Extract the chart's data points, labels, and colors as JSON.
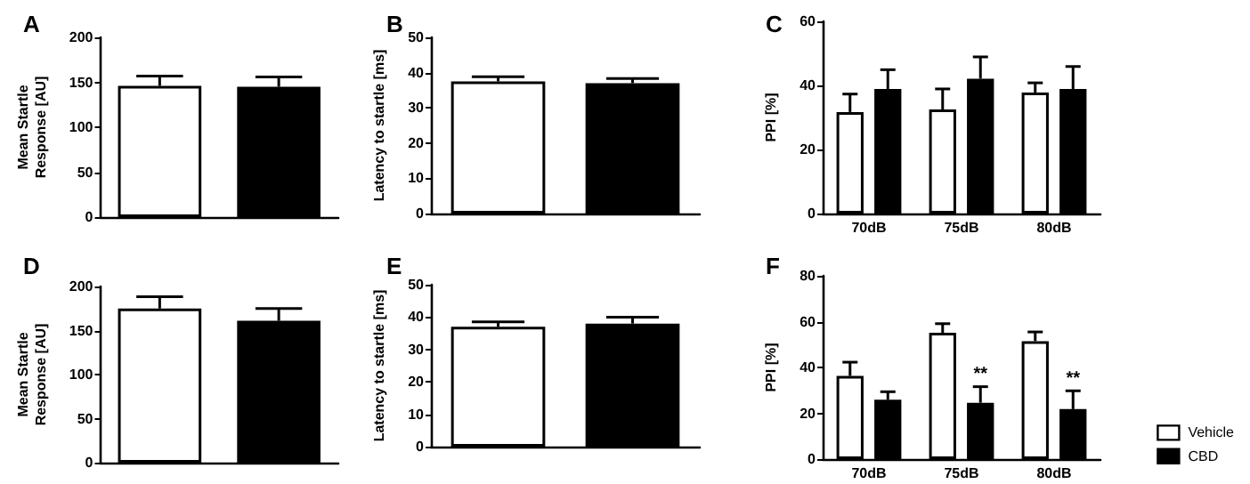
{
  "chart_data": [
    {
      "type": "bar",
      "title": "A",
      "ylabel": "Mean Startle\nResponse [AU]",
      "categories": [
        null,
        null
      ],
      "values": [
        146,
        145
      ],
      "errors": [
        11,
        11
      ],
      "colors": [
        "#ffffff",
        "#000000"
      ],
      "ylim": [
        0,
        200
      ],
      "yticks": [
        0,
        50,
        100,
        150,
        200
      ],
      "grid": false,
      "legend": false
    },
    {
      "type": "bar",
      "title": "B",
      "ylabel": "Latency to startle [ms]",
      "categories": [
        null,
        null
      ],
      "values": [
        37.5,
        37
      ],
      "errors": [
        1.3,
        1.3
      ],
      "colors": [
        "#ffffff",
        "#000000"
      ],
      "ylim": [
        0,
        50
      ],
      "yticks": [
        0,
        10,
        20,
        30,
        40,
        50
      ],
      "grid": false,
      "legend": false
    },
    {
      "type": "bar",
      "title": "C",
      "ylabel": "PPI [%]",
      "categories": [
        "70dB",
        "75dB",
        "80dB"
      ],
      "series": [
        {
          "color": "#ffffff",
          "values": [
            31.7,
            32.5,
            37.8
          ],
          "errors": [
            5.6,
            6.4,
            3
          ]
        },
        {
          "color": "#000000",
          "values": [
            38.9,
            42.1,
            38.9
          ],
          "errors": [
            6,
            6.8,
            7
          ]
        }
      ],
      "ylim": [
        0,
        60
      ],
      "yticks": [
        0,
        20,
        40,
        60
      ],
      "grid": false,
      "legend": false
    },
    {
      "type": "bar",
      "title": "D",
      "ylabel": "Mean Startle\nResponse [AU]",
      "categories": [
        null,
        null
      ],
      "values": [
        175,
        161
      ],
      "errors": [
        13.5,
        14
      ],
      "colors": [
        "#ffffff",
        "#000000"
      ],
      "ylim": [
        0,
        200
      ],
      "yticks": [
        0,
        50,
        100,
        150,
        200
      ],
      "grid": false,
      "legend": false
    },
    {
      "type": "bar",
      "title": "E",
      "ylabel": "Latency to startle [ms]",
      "categories": [
        null,
        null
      ],
      "values": [
        37,
        38
      ],
      "errors": [
        1.5,
        2
      ],
      "colors": [
        "#ffffff",
        "#000000"
      ],
      "ylim": [
        0,
        50
      ],
      "yticks": [
        0,
        10,
        20,
        30,
        40,
        50
      ],
      "grid": false,
      "legend": false
    },
    {
      "type": "bar",
      "title": "F",
      "ylabel": "PPI [%]",
      "categories": [
        "70dB",
        "75dB",
        "80dB"
      ],
      "series": [
        {
          "name": "Vehicle",
          "color": "#ffffff",
          "values": [
            36.3,
            55.1,
            51.5
          ],
          "errors": [
            6,
            4,
            4
          ]
        },
        {
          "name": "CBD",
          "color": "#000000",
          "values": [
            25.9,
            24.6,
            21.8
          ],
          "errors": [
            3.5,
            7,
            8
          ]
        }
      ],
      "ylim": [
        0,
        80
      ],
      "yticks": [
        0,
        20,
        40,
        60,
        80
      ],
      "grid": false,
      "legend": "bottom right",
      "annotations": [
        {
          "text": "**",
          "x": "75dB",
          "y": 33
        },
        {
          "text": "**",
          "x": "80dB",
          "y": 31
        }
      ]
    }
  ]
}
